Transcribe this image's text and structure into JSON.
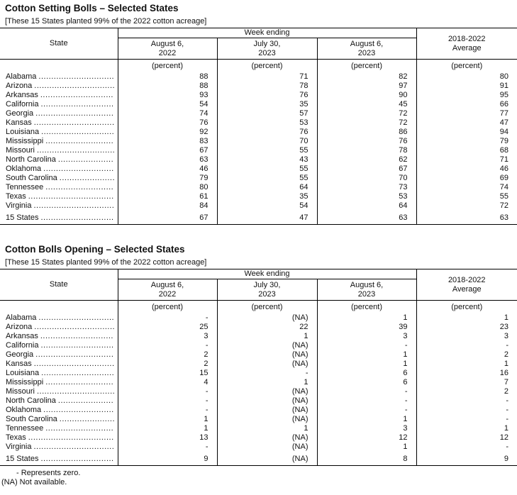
{
  "page": {
    "footnotes": [
      "- Represents zero.",
      "(NA) Not available."
    ]
  },
  "tables": [
    {
      "title": "Cotton Setting Bolls – Selected States",
      "subtitle": "[These 15 States planted 99% of the 2022 cotton acreage]",
      "header": {
        "state_label": "State",
        "week_ending_label": "Week ending",
        "columns": [
          {
            "line1": "August 6,",
            "line2": "2022"
          },
          {
            "line1": "July 30,",
            "line2": "2023"
          },
          {
            "line1": "August 6,",
            "line2": "2023"
          }
        ],
        "average_line1": "2018-2022",
        "average_line2": "Average",
        "unit": "(percent)"
      },
      "rows": [
        {
          "state": "Alabama",
          "values": [
            "88",
            "71",
            "82",
            "80"
          ]
        },
        {
          "state": "Arizona",
          "values": [
            "88",
            "78",
            "97",
            "91"
          ]
        },
        {
          "state": "Arkansas",
          "values": [
            "93",
            "76",
            "90",
            "95"
          ]
        },
        {
          "state": "California",
          "values": [
            "54",
            "35",
            "45",
            "66"
          ]
        },
        {
          "state": "Georgia",
          "values": [
            "74",
            "57",
            "72",
            "77"
          ]
        },
        {
          "state": "Kansas",
          "values": [
            "76",
            "53",
            "72",
            "47"
          ]
        },
        {
          "state": "Louisiana",
          "values": [
            "92",
            "76",
            "86",
            "94"
          ]
        },
        {
          "state": "Mississippi",
          "values": [
            "83",
            "70",
            "76",
            "79"
          ]
        },
        {
          "state": "Missouri",
          "values": [
            "67",
            "55",
            "78",
            "68"
          ]
        },
        {
          "state": "North Carolina",
          "values": [
            "63",
            "43",
            "62",
            "71"
          ]
        },
        {
          "state": "Oklahoma",
          "values": [
            "46",
            "55",
            "67",
            "46"
          ]
        },
        {
          "state": "South Carolina",
          "values": [
            "79",
            "55",
            "70",
            "69"
          ]
        },
        {
          "state": "Tennessee",
          "values": [
            "80",
            "64",
            "73",
            "74"
          ]
        },
        {
          "state": "Texas",
          "values": [
            "61",
            "35",
            "53",
            "55"
          ]
        },
        {
          "state": "Virginia",
          "values": [
            "84",
            "54",
            "64",
            "72"
          ]
        }
      ],
      "total": {
        "state": "15 States",
        "values": [
          "67",
          "47",
          "63",
          "63"
        ]
      }
    },
    {
      "title": "Cotton Bolls Opening – Selected States",
      "subtitle": "[These 15 States planted 99% of the 2022 cotton acreage]",
      "header": {
        "state_label": "State",
        "week_ending_label": "Week ending",
        "columns": [
          {
            "line1": "August 6,",
            "line2": "2022"
          },
          {
            "line1": "July 30,",
            "line2": "2023"
          },
          {
            "line1": "August 6,",
            "line2": "2023"
          }
        ],
        "average_line1": "2018-2022",
        "average_line2": "Average",
        "unit": "(percent)"
      },
      "rows": [
        {
          "state": "Alabama",
          "values": [
            "-",
            "(NA)",
            "1",
            "1"
          ]
        },
        {
          "state": "Arizona",
          "values": [
            "25",
            "22",
            "39",
            "23"
          ]
        },
        {
          "state": "Arkansas",
          "values": [
            "3",
            "1",
            "3",
            "3"
          ]
        },
        {
          "state": "California",
          "values": [
            "-",
            "(NA)",
            "-",
            "-"
          ]
        },
        {
          "state": "Georgia",
          "values": [
            "2",
            "(NA)",
            "1",
            "2"
          ]
        },
        {
          "state": "Kansas",
          "values": [
            "2",
            "(NA)",
            "1",
            "1"
          ]
        },
        {
          "state": "Louisiana",
          "values": [
            "15",
            "-",
            "6",
            "16"
          ]
        },
        {
          "state": "Mississippi",
          "values": [
            "4",
            "1",
            "6",
            "7"
          ]
        },
        {
          "state": "Missouri",
          "values": [
            "-",
            "(NA)",
            "-",
            "2"
          ]
        },
        {
          "state": "North Carolina",
          "values": [
            "-",
            "(NA)",
            "-",
            "-"
          ]
        },
        {
          "state": "Oklahoma",
          "values": [
            "-",
            "(NA)",
            "-",
            "-"
          ]
        },
        {
          "state": "South Carolina",
          "values": [
            "1",
            "(NA)",
            "1",
            "-"
          ]
        },
        {
          "state": "Tennessee",
          "values": [
            "1",
            "1",
            "3",
            "1"
          ]
        },
        {
          "state": "Texas",
          "values": [
            "13",
            "(NA)",
            "12",
            "12"
          ]
        },
        {
          "state": "Virginia",
          "values": [
            "-",
            "(NA)",
            "1",
            "-"
          ]
        }
      ],
      "total": {
        "state": "15 States",
        "values": [
          "9",
          "(NA)",
          "8",
          "9"
        ]
      }
    }
  ]
}
